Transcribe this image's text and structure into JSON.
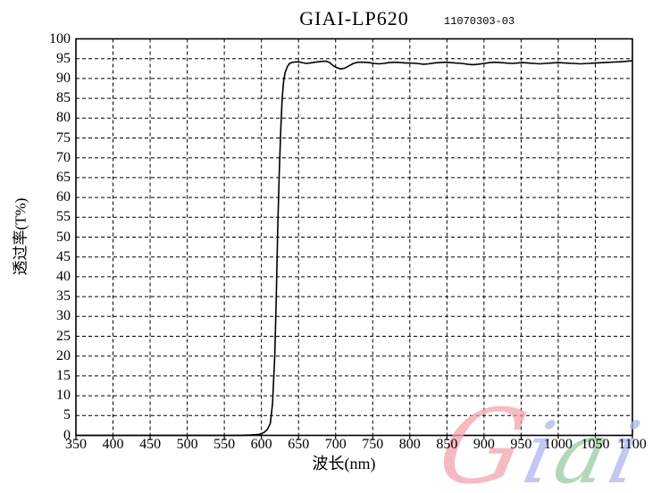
{
  "chart_data": {
    "type": "line",
    "title": "GIAI-LP620",
    "annotation": "11070303-03",
    "xlabel": "波长(nm)",
    "ylabel": "透过率(T%)",
    "xlim": [
      350,
      1100
    ],
    "ylim": [
      0,
      100
    ],
    "x_ticks": [
      350,
      400,
      450,
      500,
      550,
      600,
      650,
      700,
      750,
      800,
      850,
      900,
      950,
      1000,
      1050,
      1100
    ],
    "y_ticks": [
      0,
      5,
      10,
      15,
      20,
      25,
      30,
      35,
      40,
      45,
      50,
      55,
      60,
      65,
      70,
      75,
      80,
      85,
      90,
      95,
      100
    ],
    "grid": "dashed",
    "legend": "none",
    "line_color": "#000000",
    "grid_color": "#000000",
    "series": [
      {
        "name": "transmittance",
        "x": [
          350,
          400,
          450,
          500,
          550,
          570,
          585,
          595,
          600,
          604,
          608,
          612,
          615,
          618,
          620,
          622,
          624,
          626,
          628,
          630,
          632,
          635,
          638,
          642,
          646,
          650,
          655,
          660,
          665,
          672,
          680,
          687,
          692,
          697,
          702,
          707,
          712,
          718,
          724,
          730,
          738,
          745,
          752,
          758,
          765,
          772,
          780,
          788,
          795,
          802,
          810,
          818,
          825,
          832,
          840,
          848,
          855,
          862,
          870,
          878,
          885,
          892,
          900,
          908,
          915,
          922,
          930,
          938,
          945,
          952,
          960,
          968,
          975,
          982,
          990,
          1000,
          1010,
          1020,
          1030,
          1040,
          1050,
          1060,
          1070,
          1080,
          1090,
          1100
        ],
        "y": [
          0,
          0,
          0,
          0,
          0,
          0,
          0.1,
          0.2,
          0.4,
          0.8,
          1.5,
          3,
          8,
          20,
          35,
          52,
          66,
          77,
          85,
          89.5,
          91.5,
          93,
          93.8,
          94.1,
          94.2,
          94.2,
          94,
          93.8,
          93.9,
          94.1,
          94.3,
          94.4,
          94,
          93.2,
          92.7,
          92.4,
          92.6,
          93.2,
          93.8,
          94.1,
          94.1,
          94,
          93.8,
          93.7,
          93.8,
          94,
          94.1,
          94,
          93.9,
          93.9,
          93.8,
          93.6,
          93.7,
          93.9,
          94,
          94.1,
          94,
          93.9,
          93.8,
          93.6,
          93.5,
          93.6,
          93.8,
          94,
          94.1,
          94,
          93.9,
          93.8,
          93.9,
          94,
          93.9,
          93.8,
          93.7,
          93.8,
          93.9,
          94,
          93.9,
          93.8,
          93.7,
          93.8,
          93.9,
          94,
          94.1,
          94.2,
          94.3,
          94.5
        ]
      }
    ],
    "watermark": {
      "text": "Giai",
      "letters": [
        {
          "char": "G",
          "color": "#f2a3ae"
        },
        {
          "char": "i",
          "color": "#b1b5ef"
        },
        {
          "char": "a",
          "color": "#9bcaa3"
        },
        {
          "char": "i",
          "color": "#b1b5ef"
        }
      ]
    }
  }
}
